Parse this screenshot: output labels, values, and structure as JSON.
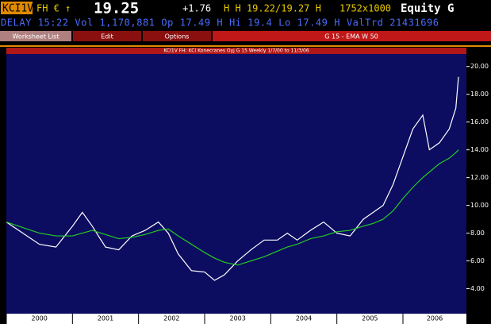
{
  "header": {
    "ticker": "KCI1V",
    "exchange": "FH € ↑",
    "price": "19.25",
    "change": "+1.76",
    "quote": "H H 19.22/19.27 H",
    "size": "1752x1000",
    "market": "Equity G",
    "info": "DELAY 15:22 Vol 1,170,881 Op 17.49 H Hi 19.4 Lo 17.49 H ValTrd 21431696"
  },
  "toolbar": {
    "buttons": [
      "Worksheet List",
      "Edit",
      "Options"
    ],
    "function": "G 15 - EMA W 50"
  },
  "chart_data": {
    "type": "line",
    "title": "KCI1V FH: KCI Konecranes Oyj G 15 Weekly 1/7/00 to 11/3/06",
    "x": [
      2000.0,
      2000.25,
      2000.5,
      2000.75,
      2001.0,
      2001.15,
      2001.3,
      2001.5,
      2001.7,
      2001.9,
      2002.1,
      2002.3,
      2002.45,
      2002.6,
      2002.8,
      2003.0,
      2003.15,
      2003.3,
      2003.5,
      2003.7,
      2003.9,
      2004.1,
      2004.25,
      2004.4,
      2004.6,
      2004.8,
      2005.0,
      2005.2,
      2005.4,
      2005.55,
      2005.7,
      2005.85,
      2006.0,
      2006.15,
      2006.3,
      2006.4,
      2006.55,
      2006.7,
      2006.8,
      2006.84
    ],
    "series": [
      {
        "color": "#ffffff",
        "values": [
          8.8,
          8.0,
          7.2,
          7.0,
          8.5,
          9.5,
          8.5,
          7.0,
          6.8,
          7.8,
          8.2,
          8.8,
          8.0,
          6.5,
          5.3,
          5.2,
          4.6,
          5.0,
          6.0,
          6.8,
          7.5,
          7.5,
          8.0,
          7.5,
          8.2,
          8.8,
          8.0,
          7.8,
          9.0,
          9.5,
          10.0,
          11.5,
          13.5,
          15.5,
          16.5,
          14.0,
          14.5,
          15.5,
          17.0,
          19.25
        ]
      },
      {
        "color": "#22cc22",
        "values": [
          8.8,
          8.4,
          8.0,
          7.8,
          7.8,
          8.0,
          8.2,
          7.9,
          7.6,
          7.7,
          7.9,
          8.2,
          8.3,
          7.8,
          7.2,
          6.6,
          6.2,
          5.9,
          5.7,
          6.0,
          6.3,
          6.7,
          7.0,
          7.2,
          7.6,
          7.8,
          8.1,
          8.2,
          8.5,
          8.7,
          9.0,
          9.6,
          10.5,
          11.3,
          12.0,
          12.4,
          13.0,
          13.4,
          13.8,
          14.0
        ]
      }
    ],
    "xlim": [
      2000,
      2006.96
    ],
    "xticks": [
      2000,
      2001,
      2002,
      2003,
      2004,
      2005,
      2006
    ],
    "ylim": [
      2.2,
      20.9
    ],
    "yticks": [
      {
        "value": 4,
        "label": "4.00"
      },
      {
        "value": 6,
        "label": "6.00"
      },
      {
        "value": 8,
        "label": "8.00"
      },
      {
        "value": 10,
        "label": "10.00"
      },
      {
        "value": 12,
        "label": "12.00"
      },
      {
        "value": 14,
        "label": "14.00"
      },
      {
        "value": 16,
        "label": "16.00"
      },
      {
        "value": 18,
        "label": "18.00"
      },
      {
        "value": 20,
        "label": "20.00"
      }
    ]
  }
}
